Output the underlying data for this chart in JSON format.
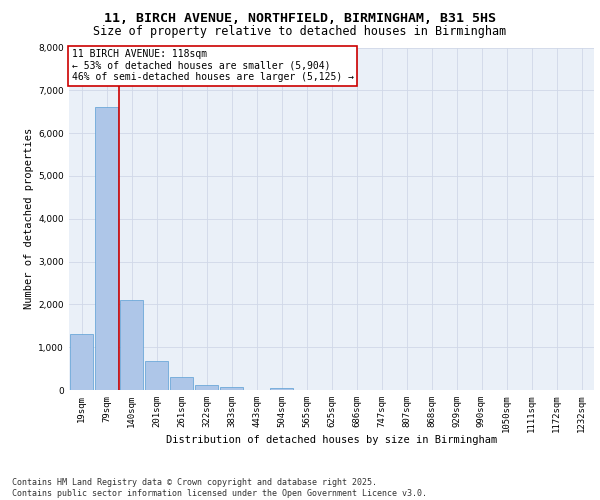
{
  "title_line1": "11, BIRCH AVENUE, NORTHFIELD, BIRMINGHAM, B31 5HS",
  "title_line2": "Size of property relative to detached houses in Birmingham",
  "xlabel": "Distribution of detached houses by size in Birmingham",
  "ylabel": "Number of detached properties",
  "categories": [
    "19sqm",
    "79sqm",
    "140sqm",
    "201sqm",
    "261sqm",
    "322sqm",
    "383sqm",
    "443sqm",
    "504sqm",
    "565sqm",
    "625sqm",
    "686sqm",
    "747sqm",
    "807sqm",
    "868sqm",
    "929sqm",
    "990sqm",
    "1050sqm",
    "1111sqm",
    "1172sqm",
    "1232sqm"
  ],
  "values": [
    1300,
    6600,
    2100,
    680,
    300,
    110,
    70,
    0,
    50,
    0,
    0,
    0,
    0,
    0,
    0,
    0,
    0,
    0,
    0,
    0,
    0
  ],
  "bar_color": "#aec6e8",
  "bar_edge_color": "#5a9fd4",
  "vline_color": "#cc0000",
  "vline_x_index": 1.5,
  "annotation_title": "11 BIRCH AVENUE: 118sqm",
  "annotation_line2": "← 53% of detached houses are smaller (5,904)",
  "annotation_line3": "46% of semi-detached houses are larger (5,125) →",
  "annotation_box_color": "#ffffff",
  "annotation_border_color": "#cc0000",
  "ylim": [
    0,
    8000
  ],
  "yticks": [
    0,
    1000,
    2000,
    3000,
    4000,
    5000,
    6000,
    7000,
    8000
  ],
  "grid_color": "#d0d8e8",
  "background_color": "#eaf0f8",
  "footer_line1": "Contains HM Land Registry data © Crown copyright and database right 2025.",
  "footer_line2": "Contains public sector information licensed under the Open Government Licence v3.0.",
  "title_fontsize": 9.5,
  "subtitle_fontsize": 8.5,
  "axis_label_fontsize": 7.5,
  "tick_fontsize": 6.5,
  "annotation_fontsize": 7,
  "footer_fontsize": 6
}
